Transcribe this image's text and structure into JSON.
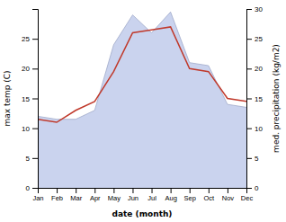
{
  "chart_data": {
    "type": "line",
    "categories": [
      "Jan",
      "Feb",
      "Mar",
      "Apr",
      "May",
      "Jun",
      "Jul",
      "Aug",
      "Sep",
      "Oct",
      "Nov",
      "Dec"
    ],
    "series": [
      {
        "type": "area",
        "axis": "y2",
        "color": "#b8c4e8",
        "values": [
          12.0,
          11.5,
          11.5,
          13.0,
          24.0,
          29.0,
          26.0,
          29.5,
          21.0,
          20.5,
          14.0,
          13.5
        ]
      },
      {
        "type": "line",
        "color": "#c0392b",
        "values": [
          11.5,
          11.0,
          13.0,
          14.5,
          19.5,
          26.0,
          26.5,
          27.0,
          20.0,
          19.5,
          15.0,
          14.5
        ]
      }
    ],
    "xlabel": "date (month)",
    "ylabel": "max temp (C)",
    "y2label": "med. precipitation (kg/m2)",
    "ylim": [
      0,
      30
    ],
    "yticks": [
      0,
      5,
      10,
      15,
      20,
      25
    ],
    "y2lim": [
      0,
      30
    ],
    "y2ticks": [
      0,
      5,
      10,
      15,
      20,
      25,
      30
    ],
    "grid": false
  }
}
